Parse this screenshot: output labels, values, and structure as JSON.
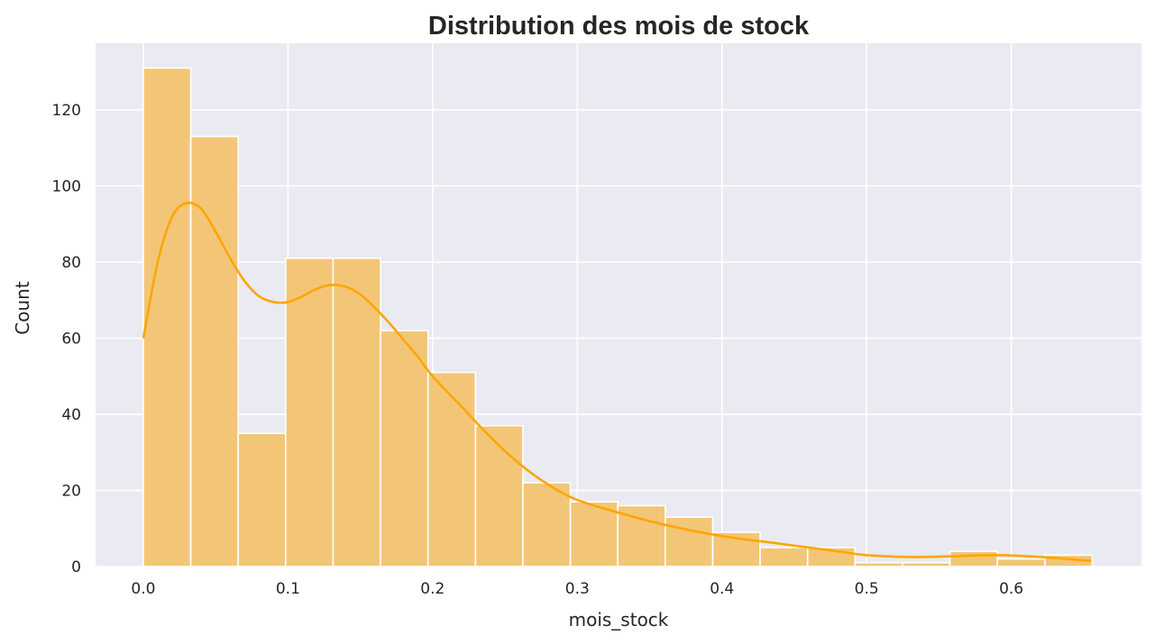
{
  "chart_data": {
    "type": "bar",
    "title": "Distribution des mois de stock",
    "xlabel": "mois_stock",
    "ylabel": "Count",
    "xlim": [
      -0.033,
      0.69
    ],
    "ylim": [
      0,
      137.5
    ],
    "xticks": [
      0.0,
      0.1,
      0.2,
      0.3,
      0.4,
      0.5,
      0.6
    ],
    "xtick_labels": [
      "0.0",
      "0.1",
      "0.2",
      "0.3",
      "0.4",
      "0.5",
      "0.6"
    ],
    "yticks": [
      0,
      20,
      40,
      60,
      80,
      100,
      120
    ],
    "ytick_labels": [
      "0",
      "20",
      "40",
      "60",
      "80",
      "100",
      "120"
    ],
    "bin_start": 0.0,
    "bin_width": 0.0328,
    "counts": [
      131,
      113,
      35,
      81,
      81,
      62,
      51,
      37,
      22,
      17,
      16,
      13,
      9,
      5,
      5,
      1,
      1,
      4,
      2,
      3
    ],
    "kde": {
      "x": [
        0.0,
        0.01,
        0.02,
        0.03,
        0.04,
        0.05,
        0.06,
        0.07,
        0.08,
        0.09,
        0.1,
        0.11,
        0.12,
        0.13,
        0.14,
        0.15,
        0.16,
        0.17,
        0.18,
        0.19,
        0.2,
        0.22,
        0.24,
        0.26,
        0.28,
        0.3,
        0.33,
        0.36,
        0.4,
        0.44,
        0.48,
        0.5,
        0.53,
        0.56,
        0.59,
        0.62,
        0.655
      ],
      "y": [
        60,
        80,
        92,
        95.5,
        94,
        88,
        81,
        75,
        71,
        69.5,
        69.5,
        71,
        73,
        74,
        73.5,
        71.5,
        68,
        64,
        59.5,
        55,
        50,
        42,
        34,
        27,
        21.5,
        17.5,
        14,
        11,
        8,
        6,
        4,
        3,
        2.5,
        2.7,
        3,
        2.5,
        1.5
      ]
    },
    "grid": true,
    "colors": {
      "background": "#eaeaf2",
      "grid": "#ffffff",
      "bar_fill": "#f3c677",
      "bar_edge": "#ffffff",
      "kde_line": "#ffa500",
      "text": "#262626"
    }
  }
}
